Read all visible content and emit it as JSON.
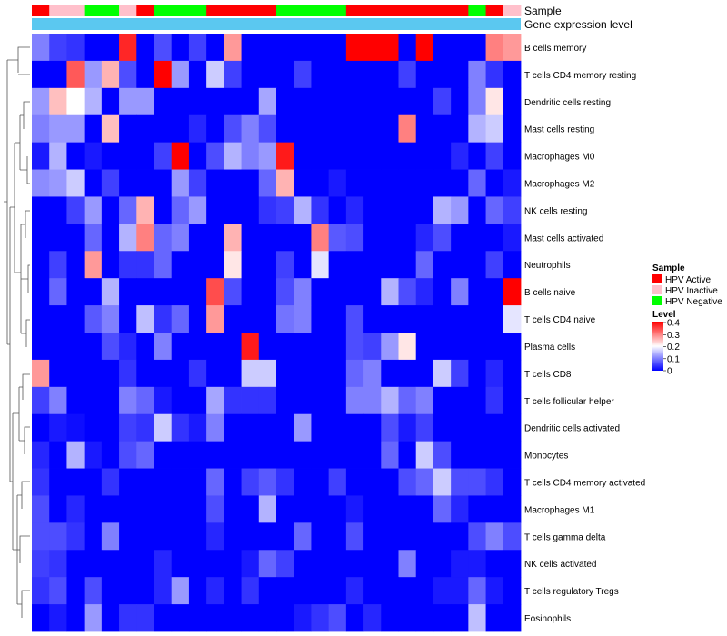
{
  "chart_data": {
    "type": "heatmap",
    "title": "",
    "annotation_tracks": [
      "Sample",
      "Gene expression level"
    ],
    "rows": [
      "B cells memory",
      "T cells CD4 memory resting",
      "Dendritic cells resting",
      "Mast cells resting",
      "Macrophages M0",
      "Macrophages M2",
      "NK cells resting",
      "Mast cells activated",
      "Neutrophils",
      "B cells naive",
      "T cells CD4 naive",
      "Plasma cells",
      "T cells CD8",
      "T cells follicular helper",
      "Dendritic cells activated",
      "Monocytes",
      "T cells CD4 memory activated",
      "Macrophages M1",
      "T cells gamma delta",
      "NK cells activated",
      "T cells regulatory  Tregs",
      "Eosinophils"
    ],
    "sample_groups": [
      "HPV Active",
      "HPV Inactive",
      "HPV Inactive",
      "HPV Negative",
      "HPV Negative",
      "HPV Inactive",
      "HPV Active",
      "HPV Negative",
      "HPV Negative",
      "HPV Negative",
      "HPV Active",
      "HPV Active",
      "HPV Active",
      "HPV Active",
      "HPV Negative",
      "HPV Negative",
      "HPV Negative",
      "HPV Negative",
      "HPV Active",
      "HPV Active",
      "HPV Active",
      "HPV Active",
      "HPV Active",
      "HPV Active",
      "HPV Active",
      "HPV Negative",
      "HPV Active",
      "HPV Inactive"
    ],
    "values": [
      [
        0.1,
        0.05,
        0.04,
        0.0,
        0.0,
        0.37,
        0.0,
        0.06,
        0.0,
        0.05,
        0.0,
        0.28,
        0.0,
        0.0,
        0.0,
        0.0,
        0.0,
        0.0,
        0.4,
        0.4,
        0.4,
        0.0,
        0.4,
        0.0,
        0.0,
        0.0,
        0.3,
        0.28
      ],
      [
        0.0,
        0.0,
        0.33,
        0.12,
        0.26,
        0.06,
        0.0,
        0.4,
        0.12,
        0.0,
        0.16,
        0.05,
        0.0,
        0.0,
        0.0,
        0.05,
        0.0,
        0.0,
        0.0,
        0.0,
        0.0,
        0.05,
        0.0,
        0.0,
        0.0,
        0.1,
        0.04,
        0.0
      ],
      [
        0.12,
        0.25,
        0.2,
        0.14,
        0.0,
        0.12,
        0.12,
        0.0,
        0.0,
        0.0,
        0.0,
        0.0,
        0.0,
        0.13,
        0.0,
        0.0,
        0.0,
        0.0,
        0.0,
        0.0,
        0.0,
        0.0,
        0.0,
        0.05,
        0.0,
        0.1,
        0.22,
        0.0
      ],
      [
        0.1,
        0.12,
        0.12,
        0.0,
        0.25,
        0.0,
        0.0,
        0.0,
        0.0,
        0.03,
        0.0,
        0.06,
        0.1,
        0.06,
        0.0,
        0.0,
        0.0,
        0.0,
        0.0,
        0.0,
        0.0,
        0.3,
        0.0,
        0.0,
        0.0,
        0.14,
        0.16,
        0.0
      ],
      [
        0.02,
        0.14,
        0.0,
        0.02,
        0.0,
        0.0,
        0.0,
        0.05,
        0.4,
        0.0,
        0.06,
        0.14,
        0.1,
        0.12,
        0.38,
        0.0,
        0.0,
        0.0,
        0.0,
        0.0,
        0.0,
        0.0,
        0.0,
        0.0,
        0.03,
        0.0,
        0.05,
        0.0
      ],
      [
        0.11,
        0.12,
        0.16,
        0.0,
        0.05,
        0.0,
        0.0,
        0.0,
        0.12,
        0.05,
        0.0,
        0.0,
        0.0,
        0.08,
        0.26,
        0.0,
        0.0,
        0.02,
        0.0,
        0.0,
        0.0,
        0.0,
        0.0,
        0.0,
        0.0,
        0.08,
        0.0,
        0.02
      ],
      [
        0.0,
        0.0,
        0.05,
        0.12,
        0.0,
        0.08,
        0.26,
        0.0,
        0.08,
        0.12,
        0.0,
        0.0,
        0.0,
        0.04,
        0.05,
        0.14,
        0.04,
        0.0,
        0.03,
        0.0,
        0.0,
        0.0,
        0.0,
        0.14,
        0.12,
        0.0,
        0.08,
        0.05
      ],
      [
        0.0,
        0.0,
        0.0,
        0.08,
        0.0,
        0.14,
        0.3,
        0.08,
        0.1,
        0.0,
        0.0,
        0.26,
        0.0,
        0.0,
        0.0,
        0.0,
        0.3,
        0.07,
        0.06,
        0.0,
        0.0,
        0.0,
        0.03,
        0.06,
        0.0,
        0.0,
        0.0,
        0.02
      ],
      [
        0.0,
        0.05,
        0.0,
        0.28,
        0.0,
        0.04,
        0.04,
        0.08,
        0.0,
        0.0,
        0.0,
        0.22,
        0.0,
        0.0,
        0.05,
        0.0,
        0.18,
        0.0,
        0.0,
        0.0,
        0.0,
        0.0,
        0.08,
        0.0,
        0.0,
        0.0,
        0.05,
        0.0
      ],
      [
        0.0,
        0.08,
        0.0,
        0.0,
        0.14,
        0.0,
        0.0,
        0.0,
        0.0,
        0.0,
        0.34,
        0.06,
        0.0,
        0.0,
        0.06,
        0.1,
        0.0,
        0.0,
        0.0,
        0.0,
        0.14,
        0.06,
        0.03,
        0.0,
        0.1,
        0.0,
        0.0,
        0.4
      ],
      [
        0.0,
        0.0,
        0.0,
        0.07,
        0.1,
        0.0,
        0.15,
        0.04,
        0.08,
        0.0,
        0.28,
        0.0,
        0.0,
        0.0,
        0.09,
        0.1,
        0.0,
        0.0,
        0.06,
        0.0,
        0.0,
        0.0,
        0.0,
        0.0,
        0.0,
        0.0,
        0.0,
        0.18
      ],
      [
        0.0,
        0.0,
        0.0,
        0.0,
        0.06,
        0.03,
        0.0,
        0.1,
        0.0,
        0.0,
        0.0,
        0.0,
        0.38,
        0.0,
        0.0,
        0.0,
        0.0,
        0.0,
        0.06,
        0.05,
        0.12,
        0.22,
        0.0,
        0.0,
        0.0,
        0.0,
        0.0,
        0.0
      ],
      [
        0.28,
        0.0,
        0.0,
        0.0,
        0.0,
        0.04,
        0.0,
        0.0,
        0.0,
        0.04,
        0.0,
        0.0,
        0.16,
        0.16,
        0.0,
        0.0,
        0.0,
        0.0,
        0.08,
        0.1,
        0.0,
        0.0,
        0.0,
        0.16,
        0.05,
        0.0,
        0.03,
        0.0
      ],
      [
        0.05,
        0.1,
        0.0,
        0.0,
        0.0,
        0.1,
        0.08,
        0.02,
        0.0,
        0.0,
        0.13,
        0.04,
        0.04,
        0.04,
        0.0,
        0.0,
        0.0,
        0.0,
        0.1,
        0.1,
        0.14,
        0.08,
        0.1,
        0.0,
        0.0,
        0.0,
        0.04,
        0.0
      ],
      [
        0.0,
        0.02,
        0.01,
        0.0,
        0.0,
        0.05,
        0.04,
        0.16,
        0.04,
        0.02,
        0.1,
        0.0,
        0.0,
        0.0,
        0.0,
        0.12,
        0.0,
        0.0,
        0.0,
        0.0,
        0.06,
        0.02,
        0.05,
        0.0,
        0.0,
        0.0,
        0.0,
        0.0
      ],
      [
        0.03,
        0.0,
        0.14,
        0.02,
        0.0,
        0.06,
        0.08,
        0.0,
        0.0,
        0.0,
        0.0,
        0.0,
        0.0,
        0.0,
        0.0,
        0.0,
        0.0,
        0.0,
        0.0,
        0.0,
        0.08,
        0.0,
        0.16,
        0.06,
        0.0,
        0.0,
        0.0,
        0.0
      ],
      [
        0.04,
        0.0,
        0.0,
        0.0,
        0.04,
        0.0,
        0.0,
        0.0,
        0.0,
        0.0,
        0.08,
        0.0,
        0.05,
        0.07,
        0.04,
        0.0,
        0.0,
        0.05,
        0.0,
        0.0,
        0.0,
        0.06,
        0.08,
        0.16,
        0.06,
        0.06,
        0.04,
        0.0
      ],
      [
        0.06,
        0.0,
        0.03,
        0.0,
        0.0,
        0.0,
        0.0,
        0.0,
        0.0,
        0.0,
        0.06,
        0.0,
        0.0,
        0.14,
        0.0,
        0.0,
        0.0,
        0.0,
        0.02,
        0.0,
        0.0,
        0.0,
        0.0,
        0.08,
        0.03,
        0.0,
        0.0,
        0.0
      ],
      [
        0.06,
        0.06,
        0.04,
        0.0,
        0.1,
        0.0,
        0.0,
        0.0,
        0.0,
        0.0,
        0.03,
        0.0,
        0.0,
        0.0,
        0.0,
        0.08,
        0.0,
        0.0,
        0.06,
        0.0,
        0.0,
        0.0,
        0.0,
        0.0,
        0.0,
        0.06,
        0.1,
        0.06
      ],
      [
        0.05,
        0.04,
        0.0,
        0.0,
        0.0,
        0.0,
        0.0,
        0.03,
        0.0,
        0.0,
        0.0,
        0.0,
        0.02,
        0.08,
        0.05,
        0.0,
        0.0,
        0.0,
        0.0,
        0.0,
        0.0,
        0.1,
        0.0,
        0.0,
        0.02,
        0.02,
        0.0,
        0.0
      ],
      [
        0.04,
        0.06,
        0.0,
        0.06,
        0.0,
        0.0,
        0.0,
        0.03,
        0.12,
        0.0,
        0.03,
        0.0,
        0.04,
        0.0,
        0.0,
        0.0,
        0.0,
        0.0,
        0.03,
        0.0,
        0.0,
        0.0,
        0.0,
        0.02,
        0.02,
        0.08,
        0.02,
        0.0
      ],
      [
        0.0,
        0.02,
        0.0,
        0.12,
        0.0,
        0.04,
        0.04,
        0.0,
        0.0,
        0.0,
        0.0,
        0.0,
        0.0,
        0.0,
        0.0,
        0.02,
        0.04,
        0.06,
        0.0,
        0.03,
        0.0,
        0.0,
        0.0,
        0.0,
        0.0,
        0.15,
        0.0,
        0.0
      ]
    ],
    "color_scale": {
      "min": 0,
      "max": 0.4,
      "low": "#0000ff",
      "mid": "#ffffff",
      "high": "#ff0000"
    },
    "legend": {
      "sample_title": "Sample",
      "groups": [
        {
          "label": "HPV Active",
          "color": "#ff0000"
        },
        {
          "label": "HPV Inactive",
          "color": "#ffc0cb"
        },
        {
          "label": "HPV Negative",
          "color": "#00ff00"
        }
      ],
      "level_title": "Level",
      "level_ticks": [
        "0.4",
        "0.3",
        "0.2",
        "0.1",
        "0"
      ]
    },
    "expression_bar_color": "#5bc8f0",
    "dendrogram": "hierarchical row clustering (left)"
  }
}
